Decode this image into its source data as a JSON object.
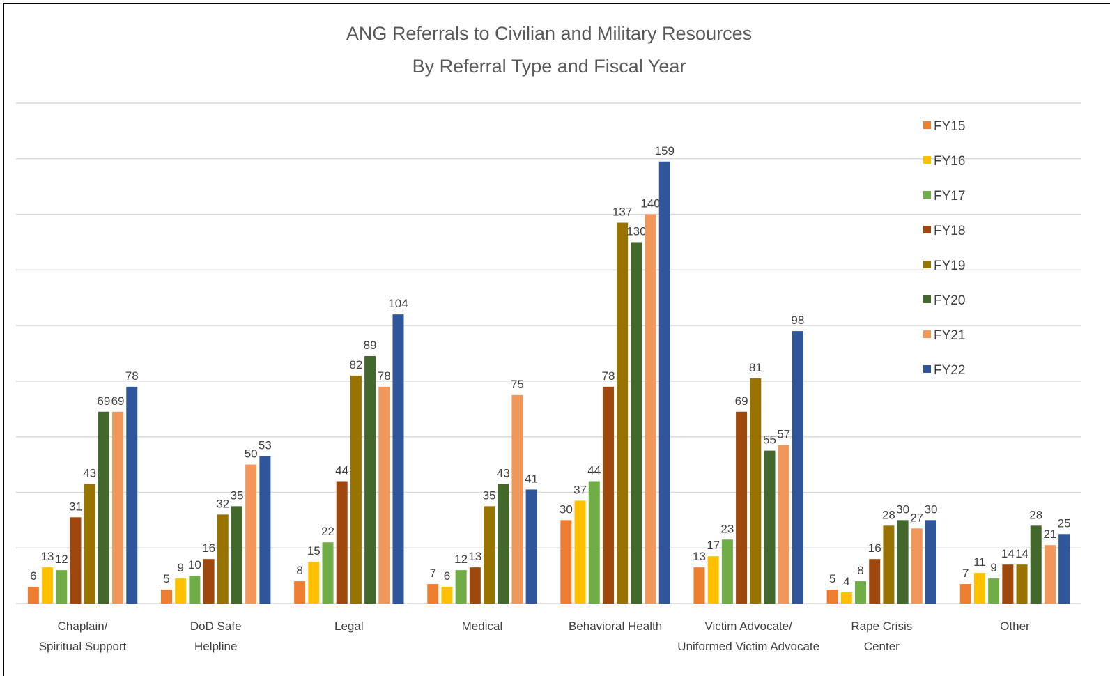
{
  "chart_data": {
    "type": "bar",
    "title": [
      "ANG Referrals to Civilian and Military Resources",
      "By Referral Type and Fiscal Year"
    ],
    "categories": [
      "Chaplain/\nSpiritual Support",
      "DoD Safe\nHelpline",
      "Legal",
      "Medical",
      "Behavioral Health",
      "Victim Advocate/\nUniformed Victim Advocate",
      "Rape Crisis\nCenter",
      "Other"
    ],
    "series": [
      {
        "name": "FY15",
        "color": "#ed7d31",
        "values": [
          6,
          5,
          8,
          7,
          30,
          13,
          5,
          7
        ]
      },
      {
        "name": "FY16",
        "color": "#ffc000",
        "values": [
          13,
          9,
          15,
          6,
          37,
          17,
          4,
          11
        ]
      },
      {
        "name": "FY17",
        "color": "#70ad47",
        "values": [
          12,
          10,
          22,
          12,
          44,
          23,
          8,
          9
        ]
      },
      {
        "name": "FY18",
        "color": "#9e480e",
        "values": [
          31,
          16,
          44,
          13,
          78,
          69,
          16,
          14
        ]
      },
      {
        "name": "FY19",
        "color": "#997300",
        "values": [
          43,
          32,
          82,
          35,
          137,
          81,
          28,
          14
        ]
      },
      {
        "name": "FY20",
        "color": "#43682b",
        "values": [
          69,
          35,
          89,
          43,
          130,
          55,
          30,
          28
        ]
      },
      {
        "name": "FY21",
        "color": "#f1975a",
        "values": [
          69,
          50,
          78,
          75,
          140,
          57,
          27,
          21
        ]
      },
      {
        "name": "FY22",
        "color": "#2f559b",
        "values": [
          78,
          53,
          104,
          41,
          159,
          98,
          30,
          25
        ]
      }
    ],
    "ylim": [
      0,
      180
    ],
    "yticks": [
      0,
      20,
      40,
      60,
      80,
      100,
      120,
      140,
      160,
      180
    ],
    "grid": true,
    "legend": "right"
  }
}
